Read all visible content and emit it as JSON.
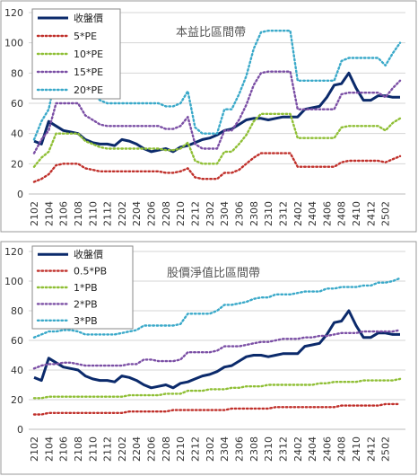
{
  "colors": {
    "close": "#0b2a6b",
    "c1": "#c0302b",
    "c2": "#8fbf35",
    "c3": "#7b4fa5",
    "c4": "#3aa9c9",
    "frame": "#9a9a9a",
    "grid": "#d6d6d6"
  },
  "chart_data": [
    {
      "type": "line",
      "title": "本益比區間帶",
      "ylim": [
        0,
        120
      ],
      "yticks": [
        "0",
        "20",
        "40",
        "60",
        "80",
        "100",
        "120"
      ],
      "xticks": [
        "2102",
        "2104",
        "2106",
        "2108",
        "2110",
        "2112",
        "2202",
        "2204",
        "2206",
        "2208",
        "2210",
        "2212",
        "2302",
        "2304",
        "2306",
        "2308",
        "2310",
        "2312",
        "2402",
        "2404",
        "2406",
        "2408",
        "2410",
        "2412",
        "2502"
      ],
      "legend_position": "top-left",
      "series": [
        {
          "name": "收盤價",
          "style": "solid",
          "color_key": "close",
          "values": [
            35,
            33,
            48,
            45,
            42,
            41,
            40,
            36,
            34,
            33,
            33,
            32,
            36,
            35,
            33,
            30,
            28,
            29,
            30,
            28,
            31,
            32,
            34,
            36,
            37,
            39,
            42,
            43,
            46,
            49,
            50,
            50,
            49,
            50,
            51,
            51,
            51,
            56,
            57,
            58,
            64,
            72,
            73,
            80,
            70,
            62,
            62,
            65,
            65,
            64,
            64
          ]
        },
        {
          "name": "5*PE",
          "style": "dotted",
          "color_key": "c1",
          "values": [
            8,
            10,
            13,
            19,
            20,
            20,
            20,
            17,
            16,
            15,
            15,
            15,
            15,
            15,
            15,
            15,
            15,
            15,
            14,
            14,
            15,
            17,
            11,
            10,
            10,
            10,
            14,
            14,
            16,
            20,
            24,
            27,
            27,
            27,
            27,
            27,
            18,
            18,
            18,
            18,
            18,
            18,
            21,
            22,
            22,
            22,
            22,
            22,
            21,
            23,
            25
          ]
        },
        {
          "name": "10*PE",
          "style": "dotted",
          "color_key": "c2",
          "values": [
            18,
            24,
            28,
            40,
            40,
            40,
            40,
            35,
            33,
            31,
            30,
            30,
            30,
            30,
            30,
            30,
            30,
            30,
            29,
            29,
            30,
            34,
            22,
            20,
            20,
            20,
            28,
            28,
            33,
            39,
            48,
            53,
            53,
            53,
            53,
            53,
            37,
            37,
            37,
            37,
            37,
            37,
            44,
            45,
            45,
            45,
            45,
            45,
            42,
            47,
            50
          ]
        },
        {
          "name": "15*PE",
          "style": "dotted",
          "color_key": "c3",
          "values": [
            27,
            36,
            42,
            60,
            60,
            60,
            60,
            52,
            49,
            46,
            45,
            45,
            45,
            45,
            45,
            45,
            45,
            45,
            43,
            43,
            45,
            51,
            33,
            30,
            30,
            30,
            42,
            42,
            49,
            59,
            72,
            80,
            81,
            81,
            81,
            81,
            56,
            56,
            56,
            56,
            56,
            56,
            66,
            67,
            67,
            67,
            67,
            67,
            64,
            70,
            75
          ]
        },
        {
          "name": "20*PE",
          "style": "dotted",
          "color_key": "c4",
          "values": [
            36,
            48,
            56,
            79,
            80,
            80,
            80,
            70,
            66,
            62,
            60,
            60,
            60,
            60,
            60,
            60,
            60,
            60,
            58,
            58,
            60,
            68,
            44,
            40,
            40,
            40,
            56,
            56,
            66,
            78,
            96,
            107,
            108,
            108,
            108,
            108,
            75,
            75,
            75,
            75,
            75,
            75,
            88,
            90,
            90,
            90,
            90,
            90,
            85,
            93,
            100
          ]
        }
      ]
    },
    {
      "type": "line",
      "title": "股價淨值比區間帶",
      "ylim": [
        0,
        120
      ],
      "yticks": [
        "0",
        "20",
        "40",
        "60",
        "80",
        "100",
        "120"
      ],
      "xticks": [
        "2102",
        "2104",
        "2106",
        "2108",
        "2110",
        "2112",
        "2202",
        "2204",
        "2206",
        "2208",
        "2210",
        "2212",
        "2302",
        "2304",
        "2306",
        "2308",
        "2310",
        "2312",
        "2402",
        "2404",
        "2406",
        "2408",
        "2410",
        "2412",
        "2502"
      ],
      "legend_position": "top-left",
      "series": [
        {
          "name": "收盤價",
          "style": "solid",
          "color_key": "close",
          "values": [
            35,
            33,
            48,
            45,
            42,
            41,
            40,
            36,
            34,
            33,
            33,
            32,
            36,
            35,
            33,
            30,
            28,
            29,
            30,
            28,
            31,
            32,
            34,
            36,
            37,
            39,
            42,
            43,
            46,
            49,
            50,
            50,
            49,
            50,
            51,
            51,
            51,
            56,
            57,
            58,
            64,
            72,
            73,
            80,
            70,
            62,
            62,
            65,
            65,
            64,
            64
          ]
        },
        {
          "name": "0.5*PB",
          "style": "dotted",
          "color_key": "c1",
          "values": [
            10,
            10,
            11,
            11,
            11,
            11,
            11,
            11,
            11,
            11,
            11,
            11,
            11,
            12,
            12,
            12,
            12,
            12,
            12,
            13,
            13,
            13,
            13,
            13,
            13,
            13,
            13,
            14,
            14,
            14,
            14,
            14,
            14,
            15,
            15,
            15,
            15,
            15,
            15,
            15,
            15,
            15,
            16,
            16,
            16,
            16,
            16,
            16,
            17,
            17,
            17
          ]
        },
        {
          "name": "1*PB",
          "style": "dotted",
          "color_key": "c2",
          "values": [
            21,
            21,
            22,
            22,
            22,
            22,
            22,
            22,
            22,
            22,
            22,
            22,
            22,
            23,
            23,
            23,
            23,
            23,
            24,
            24,
            24,
            26,
            26,
            26,
            27,
            27,
            27,
            28,
            28,
            29,
            29,
            29,
            30,
            30,
            30,
            30,
            30,
            30,
            30,
            31,
            31,
            32,
            32,
            32,
            32,
            33,
            33,
            33,
            33,
            33,
            34
          ]
        },
        {
          "name": "2*PB",
          "style": "dotted",
          "color_key": "c3",
          "values": [
            41,
            43,
            44,
            44,
            45,
            45,
            44,
            43,
            43,
            43,
            43,
            43,
            43,
            44,
            44,
            47,
            47,
            46,
            46,
            46,
            47,
            52,
            52,
            52,
            52,
            53,
            56,
            56,
            56,
            57,
            58,
            59,
            59,
            60,
            61,
            61,
            61,
            62,
            62,
            63,
            63,
            64,
            65,
            65,
            65,
            66,
            66,
            66,
            66,
            66,
            67
          ]
        },
        {
          "name": "3*PB",
          "style": "dotted",
          "color_key": "c4",
          "values": [
            62,
            64,
            66,
            66,
            67,
            67,
            66,
            64,
            64,
            64,
            64,
            64,
            65,
            66,
            67,
            70,
            70,
            70,
            70,
            70,
            71,
            78,
            78,
            78,
            78,
            80,
            84,
            84,
            85,
            86,
            88,
            89,
            89,
            91,
            91,
            91,
            92,
            93,
            93,
            93,
            95,
            95,
            96,
            96,
            96,
            97,
            97,
            99,
            99,
            100,
            102
          ]
        }
      ]
    }
  ]
}
